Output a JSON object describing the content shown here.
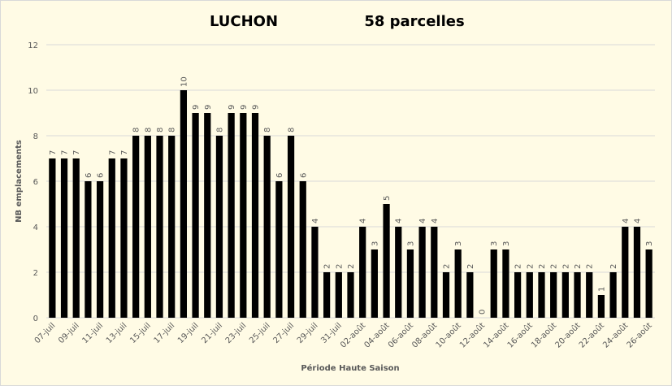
{
  "chart_data": {
    "type": "bar",
    "title": "LUCHON",
    "subtitle": "58 parcelles",
    "x_label": "Période Haute Saison",
    "y_label": "NB emplacements",
    "categories": [
      "07-juil",
      null,
      "09-juil",
      null,
      "11-juil",
      null,
      "13-juil",
      null,
      "15-juil",
      null,
      "17-juil",
      null,
      "19-juil",
      null,
      "21-juil",
      null,
      "23-juil",
      null,
      "25-juil",
      null,
      "27-juil",
      null,
      "29-juil",
      null,
      "31-juil",
      null,
      "02-août",
      null,
      "04-août",
      null,
      "06-août",
      null,
      "08-août",
      null,
      "10-août",
      null,
      "12-août",
      null,
      "14-août",
      null,
      "16-août",
      null,
      "18-août",
      null,
      "20-août",
      null,
      "22-août",
      null,
      "24-août",
      null,
      "26-août"
    ],
    "values": [
      7,
      7,
      7,
      6,
      6,
      7,
      7,
      8,
      8,
      8,
      8,
      10,
      9,
      9,
      8,
      9,
      9,
      9,
      8,
      6,
      8,
      6,
      4,
      2,
      2,
      2,
      4,
      3,
      5,
      4,
      3,
      4,
      4,
      2,
      3,
      2,
      0,
      3,
      3,
      2,
      2,
      2,
      2,
      2,
      2,
      2,
      1,
      2,
      4,
      4,
      3
    ],
    "color": "#000000",
    "ylim": [
      0,
      12
    ],
    "yticks": [
      0,
      2,
      4,
      6,
      8,
      10,
      12
    ],
    "grid": true
  }
}
